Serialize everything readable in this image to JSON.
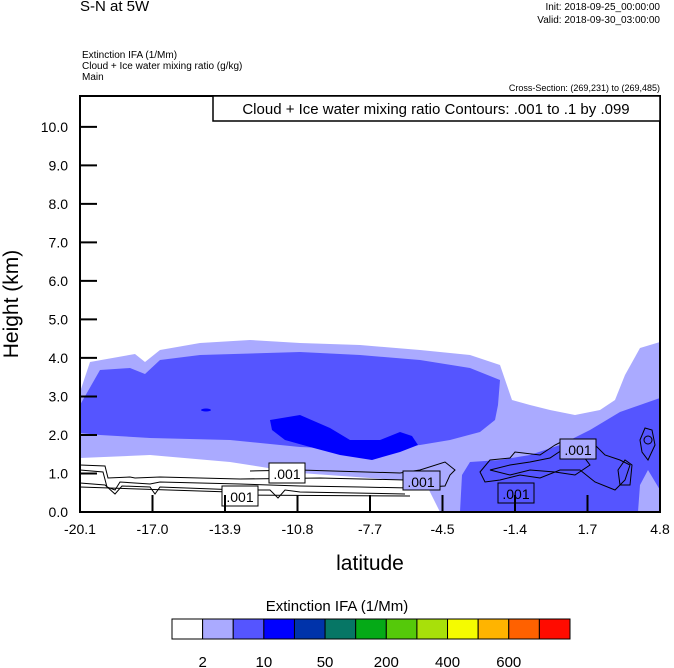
{
  "header": {
    "title": "S-N at 5W",
    "init": "Init: 2018-09-25_00:00:00",
    "valid": "Valid: 2018-09-30_03:00:00",
    "fields": [
      "Extinction IFA   (1/Mm)",
      "Cloud + Ice water mixing ratio   (g/kg)",
      "Main"
    ],
    "cross_section": "Cross-Section: (269,231) to (269,485)"
  },
  "chart_data": {
    "type": "heatmap",
    "title": "S-N at 5W",
    "xlabel": "latitude",
    "ylabel": "Height (km)",
    "xlim": [
      -20.1,
      4.8
    ],
    "ylim": [
      0,
      10.8
    ],
    "xticks": [
      "-20.1",
      "-17.0",
      "-13.9",
      "-10.8",
      "-7.7",
      "-4.5",
      "-1.4",
      "1.7",
      "4.8"
    ],
    "yticks": [
      "0.0",
      "1.0",
      "2.0",
      "3.0",
      "4.0",
      "5.0",
      "6.0",
      "7.0",
      "8.0",
      "9.0",
      "10.0"
    ],
    "contour_legend": "Cloud + Ice water mixing ratio Contours: .001 to .1 by .099",
    "contour_labels": [
      ".001",
      ".001",
      ".001",
      ".001",
      ".001"
    ],
    "colorbar": {
      "title": "Extinction IFA  (1/Mm)",
      "colors": [
        "#ffffff",
        "#aaaaff",
        "#5555ff",
        "#0000ff",
        "#0033aa",
        "#067665",
        "#05aa17",
        "#55c90a",
        "#a8e00a",
        "#f5fb00",
        "#ffb400",
        "#ff6100",
        "#ff0b00"
      ],
      "labels": [
        "2",
        "10",
        "50",
        "200",
        "400",
        "600"
      ]
    }
  }
}
